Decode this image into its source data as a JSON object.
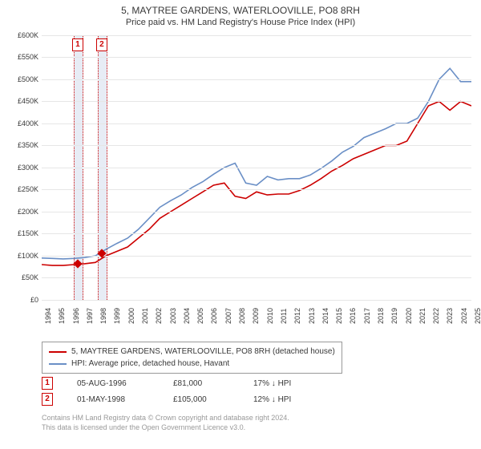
{
  "title": "5, MAYTREE GARDENS, WATERLOOVILLE, PO8 8RH",
  "subtitle": "Price paid vs. HM Land Registry's House Price Index (HPI)",
  "chart": {
    "type": "line",
    "background_color": "#ffffff",
    "grid_color": "#e6e6e6",
    "x_years": [
      "1994",
      "1995",
      "1996",
      "1997",
      "1998",
      "1999",
      "2000",
      "2001",
      "2002",
      "2003",
      "2004",
      "2005",
      "2006",
      "2007",
      "2008",
      "2009",
      "2010",
      "2011",
      "2012",
      "2013",
      "2014",
      "2015",
      "2016",
      "2017",
      "2018",
      "2019",
      "2020",
      "2021",
      "2022",
      "2023",
      "2024",
      "2025"
    ],
    "xlim": [
      1994,
      2025
    ],
    "y_ticks": [
      "£0",
      "£50K",
      "£100K",
      "£150K",
      "£200K",
      "£250K",
      "£300K",
      "£350K",
      "£400K",
      "£450K",
      "£500K",
      "£550K",
      "£600K"
    ],
    "ylim": [
      0,
      600
    ],
    "axis_fontsize": 9,
    "title_fontsize": 12,
    "series": [
      {
        "name": "5, MAYTREE GARDENS, WATERLOOVILLE, PO8 8RH (detached house)",
        "color": "#cc0000",
        "line_width": 1.6,
        "values": [
          80,
          78,
          78,
          80,
          82,
          85,
          100,
          110,
          120,
          140,
          160,
          185,
          200,
          215,
          230,
          245,
          260,
          265,
          235,
          230,
          245,
          238,
          240,
          240,
          248,
          260,
          275,
          292,
          305,
          320,
          330,
          340,
          350,
          350,
          360,
          400,
          440,
          450,
          430,
          450,
          440
        ]
      },
      {
        "name": "HPI: Average price, detached house, Havant",
        "color": "#6a8fc6",
        "line_width": 1.6,
        "values": [
          95,
          94,
          93,
          94,
          96,
          100,
          115,
          128,
          140,
          160,
          185,
          210,
          225,
          238,
          255,
          268,
          285,
          300,
          310,
          265,
          260,
          280,
          272,
          275,
          275,
          283,
          298,
          315,
          335,
          348,
          368,
          378,
          388,
          400,
          400,
          412,
          450,
          500,
          525,
          495,
          495
        ]
      }
    ],
    "sale_markers": [
      {
        "num": "1",
        "date": "05-AUG-1996",
        "price": "£81,000",
        "pct": "17% ↓ HPI",
        "x_year": 1996.6,
        "y_value": 81
      },
      {
        "num": "2",
        "date": "01-MAY-1998",
        "price": "£105,000",
        "pct": "12% ↓ HPI",
        "x_year": 1998.33,
        "y_value": 105
      }
    ],
    "marker_band_color": "#e7ecf5",
    "marker_border_color": "#cc0000"
  },
  "legend_title_fontsize": 10,
  "footer_line1": "Contains HM Land Registry data © Crown copyright and database right 2024.",
  "footer_line2": "This data is licensed under the Open Government Licence v3.0."
}
